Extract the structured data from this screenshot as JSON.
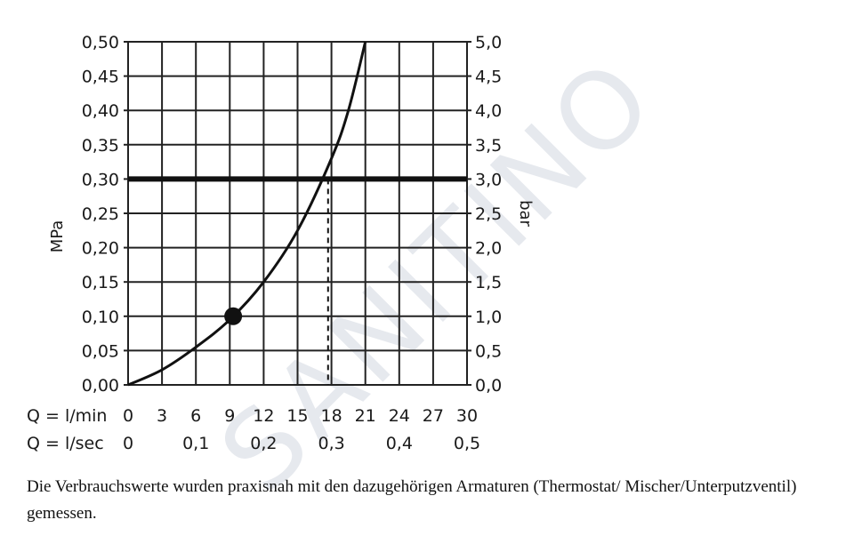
{
  "chart_data": {
    "type": "line",
    "x": [
      0,
      3,
      6,
      9,
      12,
      15,
      18,
      19.5,
      21
    ],
    "y": [
      0,
      0.022,
      0.055,
      0.095,
      0.15,
      0.225,
      0.33,
      0.4,
      0.5
    ],
    "xlabel_flow": "Q = l/min",
    "xlabel_sec": "Q = l/sec",
    "xticks_flow": [
      "0",
      "3",
      "6",
      "9",
      "12",
      "15",
      "18",
      "21",
      "24",
      "27",
      "30"
    ],
    "xticks_sec": [
      "0",
      "0,1",
      "0,2",
      "0,3",
      "0,4",
      "0,5"
    ],
    "ylabel_left": "MPa",
    "ylabel_right": "bar",
    "yticks_left": [
      "0,00",
      "0,05",
      "0,10",
      "0,15",
      "0,20",
      "0,25",
      "0,30",
      "0,35",
      "0,40",
      "0,45",
      "0,50"
    ],
    "yticks_right": [
      "0,0",
      "0,5",
      "1,0",
      "1,5",
      "2,0",
      "2,5",
      "3,0",
      "3,5",
      "4,0",
      "4,5",
      "5,0"
    ],
    "xlim": [
      0,
      30
    ],
    "ylim": [
      0,
      0.5
    ],
    "grid": true,
    "reference_line_y": 0.3,
    "marker_point": {
      "x": 9.3,
      "y": 0.1
    },
    "intersection_x": 17.7
  },
  "caption_text": "Die Verbrauchswerte wurden praxisnah mit den dazugehörigen Armaturen (Thermostat/ Mischer/Unterputzventil) gemessen.",
  "watermark_text": "SANITINO"
}
